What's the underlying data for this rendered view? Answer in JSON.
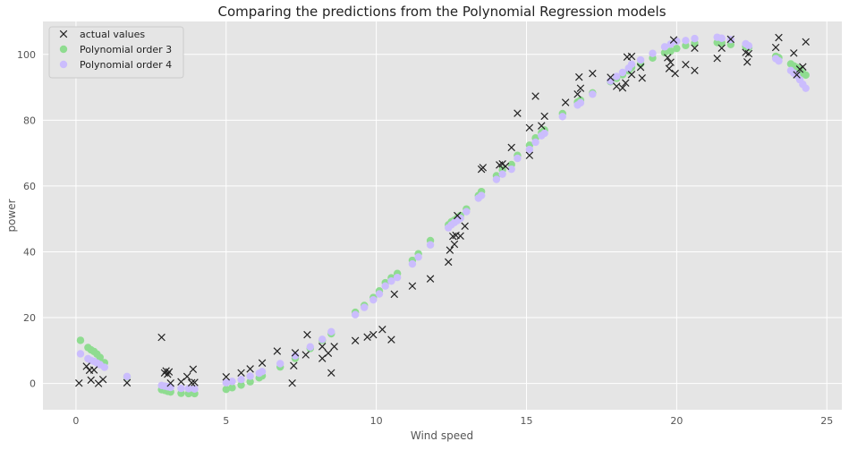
{
  "chart_data": {
    "type": "scatter",
    "title": "Comparing the predictions from the Polynomial Regression models",
    "xlabel": "Wind speed",
    "ylabel": "power",
    "xlim": [
      -1.1,
      25.5
    ],
    "ylim": [
      -8,
      110
    ],
    "xticks": [
      0,
      5,
      10,
      15,
      20,
      25
    ],
    "yticks": [
      0,
      20,
      40,
      60,
      80,
      100
    ],
    "grid": true,
    "legend_position": "top-left",
    "series": [
      {
        "name": "actual values",
        "marker": "x",
        "color": "#222222",
        "points": [
          [
            0.1,
            0.1
          ],
          [
            0.35,
            5.2
          ],
          [
            0.45,
            4.0
          ],
          [
            0.5,
            1.0
          ],
          [
            0.6,
            4.1
          ],
          [
            0.75,
            0.0
          ],
          [
            0.9,
            1.2
          ],
          [
            1.7,
            0.2
          ],
          [
            2.85,
            14.0
          ],
          [
            2.95,
            3.2
          ],
          [
            3.0,
            3.8
          ],
          [
            3.05,
            2.8
          ],
          [
            3.1,
            3.5
          ],
          [
            3.15,
            0.1
          ],
          [
            3.5,
            0.5
          ],
          [
            3.7,
            2.1
          ],
          [
            3.85,
            0.2
          ],
          [
            3.9,
            4.3
          ],
          [
            3.95,
            0.3
          ],
          [
            5.0,
            2.0
          ],
          [
            5.5,
            3.2
          ],
          [
            5.8,
            4.4
          ],
          [
            6.2,
            6.2
          ],
          [
            6.7,
            9.8
          ],
          [
            7.2,
            0.1
          ],
          [
            7.25,
            5.4
          ],
          [
            7.3,
            9.3
          ],
          [
            7.7,
            14.8
          ],
          [
            7.65,
            8.7
          ],
          [
            8.2,
            11.2
          ],
          [
            8.2,
            7.6
          ],
          [
            8.4,
            9.2
          ],
          [
            8.5,
            3.2
          ],
          [
            8.6,
            11.2
          ],
          [
            9.3,
            13.0
          ],
          [
            9.7,
            14.1
          ],
          [
            9.9,
            14.8
          ],
          [
            10.2,
            16.4
          ],
          [
            10.5,
            13.3
          ],
          [
            10.6,
            27.1
          ],
          [
            11.2,
            29.6
          ],
          [
            11.8,
            31.8
          ],
          [
            12.4,
            36.9
          ],
          [
            12.45,
            40.5
          ],
          [
            12.55,
            44.7
          ],
          [
            12.6,
            42.3
          ],
          [
            12.65,
            45.0
          ],
          [
            12.7,
            51.0
          ],
          [
            12.8,
            44.8
          ],
          [
            12.95,
            47.8
          ],
          [
            13.5,
            65.1
          ],
          [
            13.55,
            65.6
          ],
          [
            14.1,
            66.4
          ],
          [
            14.2,
            66.7
          ],
          [
            14.3,
            66.0
          ],
          [
            14.5,
            71.7
          ],
          [
            14.7,
            82.1
          ],
          [
            15.1,
            69.3
          ],
          [
            15.1,
            77.7
          ],
          [
            15.3,
            87.3
          ],
          [
            15.5,
            78.3
          ],
          [
            15.6,
            81.2
          ],
          [
            16.3,
            85.4
          ],
          [
            16.7,
            87.9
          ],
          [
            16.75,
            93.1
          ],
          [
            16.8,
            89.7
          ],
          [
            17.2,
            94.2
          ],
          [
            17.8,
            93.0
          ],
          [
            18.0,
            90.3
          ],
          [
            18.2,
            89.8
          ],
          [
            18.3,
            91.3
          ],
          [
            18.35,
            99.2
          ],
          [
            18.5,
            99.4
          ],
          [
            18.5,
            93.9
          ],
          [
            18.8,
            96.1
          ],
          [
            18.85,
            92.8
          ],
          [
            19.7,
            99.0
          ],
          [
            19.75,
            95.7
          ],
          [
            19.8,
            97.6
          ],
          [
            19.9,
            104.4
          ],
          [
            19.95,
            94.2
          ],
          [
            20.3,
            96.9
          ],
          [
            20.6,
            101.9
          ],
          [
            20.6,
            95.1
          ],
          [
            21.35,
            98.8
          ],
          [
            21.5,
            101.9
          ],
          [
            21.8,
            104.6
          ],
          [
            22.3,
            100.6
          ],
          [
            22.35,
            97.7
          ],
          [
            22.4,
            100.2
          ],
          [
            23.3,
            102.1
          ],
          [
            23.4,
            105.1
          ],
          [
            23.9,
            100.4
          ],
          [
            24.0,
            93.8
          ],
          [
            24.1,
            95.5
          ],
          [
            24.2,
            96.2
          ],
          [
            24.3,
            103.8
          ]
        ]
      },
      {
        "name": "Polynomial order 3",
        "marker": "o",
        "color": "#8fdc90",
        "points": [
          [
            0.15,
            13.1
          ],
          [
            0.4,
            10.9
          ],
          [
            0.5,
            10.2
          ],
          [
            0.6,
            9.7
          ],
          [
            0.7,
            8.9
          ],
          [
            0.8,
            7.9
          ],
          [
            0.95,
            6.3
          ],
          [
            1.7,
            2.0
          ],
          [
            2.85,
            -1.9
          ],
          [
            2.95,
            -2.1
          ],
          [
            3.05,
            -2.4
          ],
          [
            3.15,
            -2.6
          ],
          [
            3.5,
            -3.0
          ],
          [
            3.75,
            -3.1
          ],
          [
            3.95,
            -3.1
          ],
          [
            5.0,
            -1.8
          ],
          [
            5.2,
            -1.3
          ],
          [
            5.5,
            -0.5
          ],
          [
            5.8,
            0.5
          ],
          [
            6.1,
            1.7
          ],
          [
            6.2,
            2.3
          ],
          [
            6.8,
            5.0
          ],
          [
            7.3,
            7.6
          ],
          [
            7.8,
            10.6
          ],
          [
            8.2,
            13.1
          ],
          [
            8.5,
            15.1
          ],
          [
            9.3,
            21.6
          ],
          [
            9.6,
            23.7
          ],
          [
            9.9,
            26.1
          ],
          [
            10.1,
            28.1
          ],
          [
            10.3,
            30.6
          ],
          [
            10.5,
            32.1
          ],
          [
            10.7,
            33.4
          ],
          [
            11.2,
            37.4
          ],
          [
            11.4,
            39.4
          ],
          [
            11.8,
            43.4
          ],
          [
            12.4,
            48.2
          ],
          [
            12.5,
            49.1
          ],
          [
            12.6,
            49.6
          ],
          [
            12.7,
            50.3
          ],
          [
            12.8,
            51.0
          ],
          [
            13.0,
            53.0
          ],
          [
            13.4,
            57.1
          ],
          [
            13.5,
            58.3
          ],
          [
            14.0,
            63.1
          ],
          [
            14.2,
            64.9
          ],
          [
            14.5,
            66.5
          ],
          [
            14.7,
            69.3
          ],
          [
            15.1,
            72.4
          ],
          [
            15.3,
            74.6
          ],
          [
            15.5,
            76.2
          ],
          [
            15.6,
            77.0
          ],
          [
            16.2,
            82.0
          ],
          [
            16.7,
            85.5
          ],
          [
            16.8,
            86.1
          ],
          [
            17.2,
            88.3
          ],
          [
            17.8,
            91.7
          ],
          [
            18.0,
            92.7
          ],
          [
            18.2,
            93.8
          ],
          [
            18.4,
            95.0
          ],
          [
            18.5,
            96.0
          ],
          [
            18.8,
            97.1
          ],
          [
            19.2,
            98.9
          ],
          [
            19.6,
            100.5
          ],
          [
            19.8,
            101.0
          ],
          [
            20.0,
            101.8
          ],
          [
            20.3,
            102.7
          ],
          [
            20.6,
            103.4
          ],
          [
            21.35,
            103.6
          ],
          [
            21.5,
            103.5
          ],
          [
            21.8,
            103.0
          ],
          [
            22.3,
            102.4
          ],
          [
            22.4,
            102.1
          ],
          [
            23.3,
            99.4
          ],
          [
            23.4,
            99.0
          ],
          [
            23.8,
            97.1
          ],
          [
            23.9,
            96.5
          ],
          [
            24.0,
            96.0
          ],
          [
            24.1,
            95.4
          ],
          [
            24.2,
            94.3
          ],
          [
            24.3,
            93.7
          ]
        ]
      },
      {
        "name": "Polynomial order 4",
        "marker": "o",
        "color": "#cbbdfd",
        "points": [
          [
            0.15,
            9.0
          ],
          [
            0.4,
            7.5
          ],
          [
            0.5,
            7.0
          ],
          [
            0.6,
            6.7
          ],
          [
            0.7,
            6.2
          ],
          [
            0.8,
            5.7
          ],
          [
            0.95,
            4.9
          ],
          [
            1.7,
            2.1
          ],
          [
            2.85,
            -0.6
          ],
          [
            2.95,
            -0.8
          ],
          [
            3.05,
            -1.0
          ],
          [
            3.15,
            -1.2
          ],
          [
            3.5,
            -1.5
          ],
          [
            3.75,
            -1.6
          ],
          [
            3.95,
            -1.7
          ],
          [
            5.0,
            0.2
          ],
          [
            5.2,
            0.6
          ],
          [
            5.5,
            1.2
          ],
          [
            5.8,
            2.2
          ],
          [
            6.1,
            3.1
          ],
          [
            6.2,
            3.6
          ],
          [
            6.8,
            6.0
          ],
          [
            7.3,
            8.4
          ],
          [
            7.8,
            11.1
          ],
          [
            8.2,
            13.4
          ],
          [
            8.5,
            15.7
          ],
          [
            9.3,
            20.9
          ],
          [
            9.6,
            23.1
          ],
          [
            9.9,
            25.4
          ],
          [
            10.1,
            27.2
          ],
          [
            10.3,
            29.6
          ],
          [
            10.5,
            31.1
          ],
          [
            10.7,
            32.2
          ],
          [
            11.2,
            36.3
          ],
          [
            11.4,
            38.4
          ],
          [
            11.8,
            42.1
          ],
          [
            12.4,
            47.3
          ],
          [
            12.5,
            48.2
          ],
          [
            12.6,
            48.9
          ],
          [
            12.7,
            49.5
          ],
          [
            12.8,
            50.2
          ],
          [
            13.0,
            52.2
          ],
          [
            13.4,
            56.3
          ],
          [
            13.5,
            57.1
          ],
          [
            14.0,
            62.0
          ],
          [
            14.2,
            63.6
          ],
          [
            14.5,
            65.1
          ],
          [
            14.7,
            68.4
          ],
          [
            15.1,
            71.1
          ],
          [
            15.3,
            73.3
          ],
          [
            15.5,
            75.3
          ],
          [
            15.6,
            76.0
          ],
          [
            16.2,
            81.1
          ],
          [
            16.7,
            84.6
          ],
          [
            16.8,
            85.3
          ],
          [
            17.2,
            87.9
          ],
          [
            17.8,
            91.9
          ],
          [
            18.0,
            93.3
          ],
          [
            18.2,
            94.5
          ],
          [
            18.4,
            95.8
          ],
          [
            18.5,
            97.0
          ],
          [
            18.8,
            98.3
          ],
          [
            19.2,
            100.3
          ],
          [
            19.6,
            102.3
          ],
          [
            19.8,
            103.1
          ],
          [
            20.0,
            104.0
          ],
          [
            20.3,
            104.2
          ],
          [
            20.6,
            104.8
          ],
          [
            21.35,
            105.2
          ],
          [
            21.5,
            104.9
          ],
          [
            21.8,
            104.5
          ],
          [
            22.3,
            103.2
          ],
          [
            22.4,
            102.6
          ],
          [
            23.3,
            98.7
          ],
          [
            23.4,
            98.0
          ],
          [
            23.8,
            95.1
          ],
          [
            23.9,
            94.3
          ],
          [
            24.0,
            93.6
          ],
          [
            24.1,
            92.3
          ],
          [
            24.2,
            90.9
          ],
          [
            24.3,
            89.7
          ]
        ]
      }
    ]
  }
}
